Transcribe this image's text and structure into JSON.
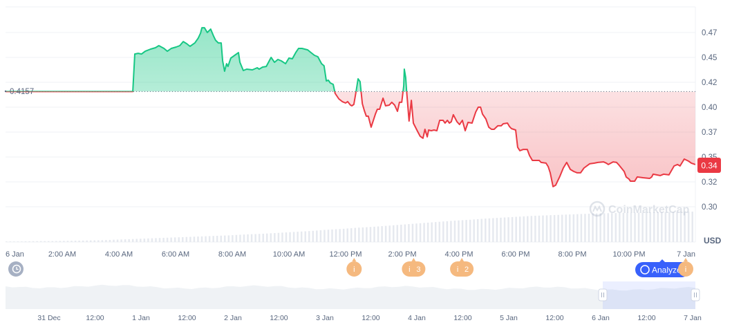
{
  "chart_data": {
    "type": "area",
    "title": "",
    "currency_label": "USD",
    "baseline": {
      "value": 0.4157,
      "label": "0.4157"
    },
    "current_price": {
      "value": 0.34,
      "label": "0.34"
    },
    "ylim": [
      0.28,
      0.49
    ],
    "yticks": [
      {
        "value": 0.475,
        "label": "0.47"
      },
      {
        "value": 0.45,
        "label": "0.45"
      },
      {
        "value": 0.425,
        "label": "0.42"
      },
      {
        "value": 0.4,
        "label": "0.40"
      },
      {
        "value": 0.375,
        "label": "0.37"
      },
      {
        "value": 0.35,
        "label": "0.35"
      },
      {
        "value": 0.325,
        "label": "0.32"
      },
      {
        "value": 0.3,
        "label": "0.30"
      }
    ],
    "xunit": "hours since 6 Jan 00:00",
    "xticks": [
      {
        "value": 0,
        "label": "6 Jan"
      },
      {
        "value": 2,
        "label": "2:00 AM"
      },
      {
        "value": 4,
        "label": "4:00 AM"
      },
      {
        "value": 6,
        "label": "6:00 AM"
      },
      {
        "value": 8,
        "label": "8:00 AM"
      },
      {
        "value": 10,
        "label": "10:00 AM"
      },
      {
        "value": 12,
        "label": "12:00 PM"
      },
      {
        "value": 14,
        "label": "2:00 PM"
      },
      {
        "value": 16,
        "label": "4:00 PM"
      },
      {
        "value": 18,
        "label": "6:00 PM"
      },
      {
        "value": 20,
        "label": "8:00 PM"
      },
      {
        "value": 22,
        "label": "10:00 PM"
      },
      {
        "value": 24,
        "label": "7 Jan"
      }
    ],
    "up_color": "#16c784",
    "down_color": "#ea3943",
    "series": [
      {
        "name": "Price",
        "points": [
          [
            0,
            0.4157
          ],
          [
            4.49,
            0.4157
          ],
          [
            4.56,
            0.4534
          ],
          [
            4.68,
            0.4541
          ],
          [
            4.8,
            0.4534
          ],
          [
            4.93,
            0.4562
          ],
          [
            5.12,
            0.4583
          ],
          [
            5.29,
            0.4597
          ],
          [
            5.41,
            0.4618
          ],
          [
            5.59,
            0.459
          ],
          [
            5.71,
            0.4562
          ],
          [
            5.85,
            0.459
          ],
          [
            6.02,
            0.4604
          ],
          [
            6.15,
            0.4618
          ],
          [
            6.27,
            0.4659
          ],
          [
            6.39,
            0.4638
          ],
          [
            6.51,
            0.4611
          ],
          [
            6.68,
            0.4645
          ],
          [
            6.8,
            0.4694
          ],
          [
            6.88,
            0.4743
          ],
          [
            6.93,
            0.4798
          ],
          [
            7.02,
            0.4798
          ],
          [
            7.12,
            0.475
          ],
          [
            7.24,
            0.4784
          ],
          [
            7.34,
            0.4715
          ],
          [
            7.41,
            0.4673
          ],
          [
            7.51,
            0.4645
          ],
          [
            7.61,
            0.4645
          ],
          [
            7.66,
            0.4465
          ],
          [
            7.73,
            0.4361
          ],
          [
            7.8,
            0.4437
          ],
          [
            7.85,
            0.4409
          ],
          [
            7.95,
            0.4493
          ],
          [
            8.22,
            0.4548
          ],
          [
            8.27,
            0.4451
          ],
          [
            8.39,
            0.4368
          ],
          [
            8.51,
            0.4382
          ],
          [
            8.71,
            0.4375
          ],
          [
            8.88,
            0.4396
          ],
          [
            8.95,
            0.4382
          ],
          [
            9.07,
            0.4403
          ],
          [
            9.2,
            0.4409
          ],
          [
            9.37,
            0.45
          ],
          [
            9.49,
            0.4451
          ],
          [
            9.61,
            0.4479
          ],
          [
            9.73,
            0.4465
          ],
          [
            9.88,
            0.4437
          ],
          [
            10.0,
            0.4493
          ],
          [
            10.12,
            0.4486
          ],
          [
            10.24,
            0.4548
          ],
          [
            10.34,
            0.459
          ],
          [
            10.46,
            0.459
          ],
          [
            10.66,
            0.4576
          ],
          [
            10.78,
            0.4548
          ],
          [
            10.9,
            0.4521
          ],
          [
            11.02,
            0.4507
          ],
          [
            11.15,
            0.4437
          ],
          [
            11.24,
            0.4416
          ],
          [
            11.32,
            0.4264
          ],
          [
            11.39,
            0.4271
          ],
          [
            11.46,
            0.4243
          ],
          [
            11.56,
            0.4229
          ],
          [
            11.63,
            0.4139
          ],
          [
            11.76,
            0.4083
          ],
          [
            11.88,
            0.4056
          ],
          [
            12.0,
            0.4042
          ],
          [
            12.07,
            0.4056
          ],
          [
            12.17,
            0.4021
          ],
          [
            12.22,
            0.4014
          ],
          [
            12.29,
            0.4028
          ],
          [
            12.37,
            0.416
          ],
          [
            12.44,
            0.4285
          ],
          [
            12.51,
            0.4257
          ],
          [
            12.59,
            0.4035
          ],
          [
            12.66,
            0.3965
          ],
          [
            12.73,
            0.391
          ],
          [
            12.8,
            0.391
          ],
          [
            12.9,
            0.3799
          ],
          [
            13.05,
            0.3931
          ],
          [
            13.12,
            0.3979
          ],
          [
            13.2,
            0.3979
          ],
          [
            13.32,
            0.409
          ],
          [
            13.41,
            0.4014
          ],
          [
            13.54,
            0.4021
          ],
          [
            13.63,
            0.4049
          ],
          [
            13.73,
            0.4021
          ],
          [
            13.83,
            0.3958
          ],
          [
            13.9,
            0.4049
          ],
          [
            13.98,
            0.4049
          ],
          [
            14.05,
            0.4215
          ],
          [
            14.07,
            0.4382
          ],
          [
            14.12,
            0.4298
          ],
          [
            14.15,
            0.4174
          ],
          [
            14.24,
            0.3861
          ],
          [
            14.32,
            0.4069
          ],
          [
            14.39,
            0.384
          ],
          [
            14.54,
            0.3757
          ],
          [
            14.63,
            0.3708
          ],
          [
            14.73,
            0.3688
          ],
          [
            14.8,
            0.3778
          ],
          [
            14.88,
            0.3702
          ],
          [
            14.93,
            0.3771
          ],
          [
            15.02,
            0.3764
          ],
          [
            15.12,
            0.3771
          ],
          [
            15.22,
            0.3764
          ],
          [
            15.32,
            0.3868
          ],
          [
            15.44,
            0.3868
          ],
          [
            15.51,
            0.384
          ],
          [
            15.59,
            0.3868
          ],
          [
            15.66,
            0.384
          ],
          [
            15.73,
            0.3854
          ],
          [
            15.8,
            0.3924
          ],
          [
            15.93,
            0.3854
          ],
          [
            16.02,
            0.3826
          ],
          [
            16.12,
            0.3868
          ],
          [
            16.22,
            0.3764
          ],
          [
            16.32,
            0.3847
          ],
          [
            16.46,
            0.384
          ],
          [
            16.59,
            0.3951
          ],
          [
            16.68,
            0.4
          ],
          [
            16.76,
            0.4
          ],
          [
            16.83,
            0.3931
          ],
          [
            16.95,
            0.3882
          ],
          [
            17.05,
            0.3799
          ],
          [
            17.15,
            0.3778
          ],
          [
            17.24,
            0.3778
          ],
          [
            17.37,
            0.3813
          ],
          [
            17.49,
            0.3813
          ],
          [
            17.56,
            0.3833
          ],
          [
            17.71,
            0.384
          ],
          [
            17.78,
            0.3806
          ],
          [
            17.85,
            0.3785
          ],
          [
            18.0,
            0.3771
          ],
          [
            18.07,
            0.3597
          ],
          [
            18.15,
            0.3563
          ],
          [
            18.27,
            0.3576
          ],
          [
            18.41,
            0.3576
          ],
          [
            18.49,
            0.3514
          ],
          [
            18.59,
            0.3465
          ],
          [
            18.83,
            0.3465
          ],
          [
            18.9,
            0.3445
          ],
          [
            19.07,
            0.3438
          ],
          [
            19.15,
            0.3403
          ],
          [
            19.22,
            0.3341
          ],
          [
            19.32,
            0.3202
          ],
          [
            19.41,
            0.3216
          ],
          [
            19.56,
            0.3306
          ],
          [
            19.68,
            0.3389
          ],
          [
            19.8,
            0.3445
          ],
          [
            19.93,
            0.3375
          ],
          [
            20.05,
            0.3354
          ],
          [
            20.17,
            0.3341
          ],
          [
            20.29,
            0.3341
          ],
          [
            20.41,
            0.3389
          ],
          [
            20.61,
            0.3431
          ],
          [
            20.78,
            0.3438
          ],
          [
            20.9,
            0.3445
          ],
          [
            21.1,
            0.3451
          ],
          [
            21.2,
            0.3438
          ],
          [
            21.27,
            0.3424
          ],
          [
            21.44,
            0.3451
          ],
          [
            21.56,
            0.3445
          ],
          [
            21.63,
            0.3424
          ],
          [
            21.83,
            0.3354
          ],
          [
            21.9,
            0.3299
          ],
          [
            22.0,
            0.3278
          ],
          [
            22.05,
            0.3257
          ],
          [
            22.2,
            0.3257
          ],
          [
            22.29,
            0.3299
          ],
          [
            22.49,
            0.3292
          ],
          [
            22.73,
            0.3285
          ],
          [
            22.8,
            0.3299
          ],
          [
            22.85,
            0.3327
          ],
          [
            23.1,
            0.3313
          ],
          [
            23.22,
            0.3327
          ],
          [
            23.41,
            0.332
          ],
          [
            23.59,
            0.341
          ],
          [
            23.71,
            0.3424
          ],
          [
            23.8,
            0.341
          ],
          [
            23.95,
            0.3479
          ],
          [
            24.1,
            0.3458
          ],
          [
            24.2,
            0.3438
          ],
          [
            24.34,
            0.3424
          ]
        ]
      }
    ],
    "volume_relative": [
      0.02,
      0.02,
      0.03,
      0.03,
      0.04,
      0.05,
      0.06,
      0.08,
      0.1,
      0.12,
      0.14,
      0.16,
      0.18,
      0.2,
      0.22,
      0.25,
      0.27,
      0.3,
      0.33,
      0.36,
      0.4,
      0.43,
      0.47,
      0.5,
      0.54,
      0.58,
      0.62,
      0.66,
      0.7,
      0.73,
      0.77,
      0.8,
      0.83,
      0.86,
      0.88,
      0.9,
      0.92,
      0.94,
      0.95,
      0.96,
      0.97,
      0.98,
      0.99,
      1.0
    ],
    "events": [
      {
        "hour": 12.3,
        "label": "i",
        "count": ""
      },
      {
        "hour": 14.4,
        "label": "i",
        "count": "3"
      },
      {
        "hour": 16.1,
        "label": "i",
        "count": "2"
      },
      {
        "hour": 24.0,
        "label": "i",
        "count": ""
      }
    ],
    "navigator": {
      "ticks": [
        "31 Dec",
        "12:00",
        "1 Jan",
        "12:00",
        "2 Jan",
        "12:00",
        "3 Jan",
        "12:00",
        "4 Jan",
        "12:00",
        "5 Jan",
        "12:00",
        "6 Jan",
        "12:00",
        "7 Jan"
      ],
      "selected_range": [
        "6 Jan",
        "7 Jan"
      ]
    }
  },
  "ui": {
    "analyze_label": "Analyze",
    "watermark": "CoinMarketCap",
    "history_icon": "history-icon"
  }
}
